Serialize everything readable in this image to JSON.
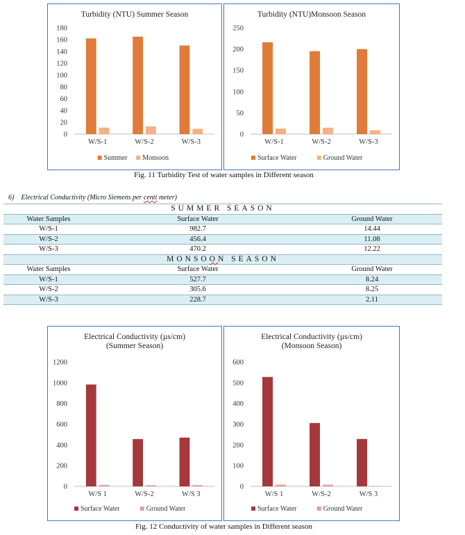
{
  "figure11": {
    "caption": "Fig. 11   Turbidity Test of water samples in Different season"
  },
  "section": {
    "number": "6)",
    "title_before": "Electrical Conductivity (Micro Siemens per ",
    "title_flagged": "centi",
    "title_after": " meter)"
  },
  "table": {
    "summer": {
      "title": "SUMMER SEASON",
      "headers": [
        "Water Samples",
        "Surface Water",
        "Ground Water"
      ],
      "rows": [
        [
          "W/S-1",
          "982.7",
          "14.44"
        ],
        [
          "W/S-2",
          "456.4",
          "11.08"
        ],
        [
          "W/S-3",
          "470.2",
          "12.22"
        ]
      ]
    },
    "monsoon": {
      "title_before": "MONSO",
      "title_flagged": "O",
      "title_after": "N SEASON",
      "headers": [
        "Water Samples",
        "Surface Water",
        "Ground Water"
      ],
      "rows": [
        [
          "W/S-1",
          "527.7",
          "8.24"
        ],
        [
          "W/S-2",
          "305.6",
          "8.25"
        ],
        [
          "W/S-3",
          "228.7",
          "2.11"
        ]
      ]
    }
  },
  "figure12": {
    "caption": "Fig. 12   Conductivity of water samples in Different season"
  },
  "chart_data": [
    {
      "type": "bar",
      "title": "Turbidity (NTU) Summer Season",
      "categories": [
        "W/S-1",
        "W/S-2",
        "W/S-3"
      ],
      "series": [
        {
          "name": "Summer",
          "values": [
            162,
            165,
            150
          ],
          "color": "#e07b39"
        },
        {
          "name": "Monsoon",
          "values": [
            11,
            13,
            9
          ],
          "color": "#f4b183"
        }
      ],
      "ylim": [
        0,
        180
      ],
      "yticks": [
        0,
        20,
        40,
        60,
        80,
        100,
        120,
        140,
        160,
        180
      ],
      "grid": false,
      "legend": "bottom"
    },
    {
      "type": "bar",
      "title": "Turbidity (NTU)Monsoon Season",
      "categories": [
        "W/S-1",
        "W/S-2",
        "W/S-3"
      ],
      "series": [
        {
          "name": "Surface Water",
          "values": [
            216,
            195,
            200
          ],
          "color": "#e07b39"
        },
        {
          "name": "Ground Water",
          "values": [
            13,
            15,
            9
          ],
          "color": "#f4b183"
        }
      ],
      "ylim": [
        0,
        250
      ],
      "yticks": [
        0,
        50,
        100,
        150,
        200,
        250
      ],
      "grid": false,
      "legend": "bottom"
    },
    {
      "type": "bar",
      "title": "Electrical Conductivity (µs/cm)",
      "subtitle": "(Summer Season)",
      "categories": [
        "W/S 1",
        "W/S-2",
        "W/S 3"
      ],
      "series": [
        {
          "name": "Surface Water",
          "values": [
            982.7,
            456.4,
            470.2
          ],
          "color": "#a5383b"
        },
        {
          "name": "Ground Water",
          "values": [
            14.44,
            11.08,
            12.22
          ],
          "color": "#e2a0a0"
        }
      ],
      "ylim": [
        0,
        1200
      ],
      "yticks": [
        0,
        200,
        400,
        600,
        800,
        1000,
        1200
      ],
      "grid": false,
      "legend": "bottom"
    },
    {
      "type": "bar",
      "title": "Electrical Conductivity (µs/cm)",
      "subtitle": "(Monsoon Season)",
      "categories": [
        "W/S 1",
        "W/S-2",
        "W/S 3"
      ],
      "series": [
        {
          "name": "Surface Water",
          "values": [
            527.7,
            305.6,
            228.7
          ],
          "color": "#a5383b"
        },
        {
          "name": "Ground Water",
          "values": [
            8.24,
            8.25,
            2.11
          ],
          "color": "#e2a0a0"
        }
      ],
      "ylim": [
        0,
        600
      ],
      "yticks": [
        0,
        100,
        200,
        300,
        400,
        500,
        600
      ],
      "grid": false,
      "legend": "bottom"
    }
  ]
}
